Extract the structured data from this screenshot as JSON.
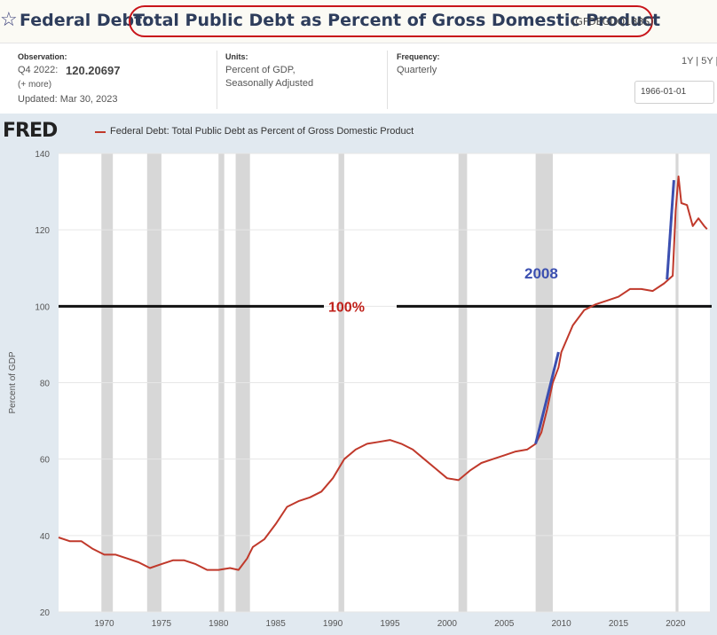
{
  "header": {
    "star_icon": "☆",
    "title_prefix": "Federal Debt:",
    "title_main": "Total Public Debt as Percent of Gross Domestic Product",
    "series_code": "(GFDEGDQ188S)"
  },
  "meta": {
    "observation_label": "Observation:",
    "observation_period": "Q4 2022:",
    "observation_value": "120.20697",
    "more_link": "(+ more)",
    "updated": "Updated: Mar 30, 2023",
    "units_label": "Units:",
    "units_line1": "Percent of GDP,",
    "units_line2": "Seasonally Adjusted",
    "frequency_label": "Frequency:",
    "frequency_value": "Quarterly",
    "range_links": "1Y | 5Y |",
    "start_date": "1966-01-01"
  },
  "legend": {
    "logo": "FRED",
    "series": "Federal Debt: Total Public Debt as Percent of Gross Domestic Product"
  },
  "annotations": {
    "hundred_label": "100%",
    "year_label": "2008"
  },
  "colors": {
    "series": "#c0392b",
    "recession": "#d7d7d7",
    "plot_bg": "#ffffff",
    "outer_bg": "#e1e9f0",
    "annotation_red": "#c0201a",
    "annotation_blue": "#3b4fb0",
    "title_oval": "#c8141a"
  },
  "chart_data": {
    "type": "line",
    "title": "Federal Debt: Total Public Debt as Percent of Gross Domestic Product",
    "ylabel": "Percent of GDP",
    "xlabel": "",
    "xlim": [
      1966.0,
      2023.0
    ],
    "ylim": [
      20,
      140
    ],
    "yticks": [
      20,
      40,
      60,
      80,
      100,
      120,
      140
    ],
    "xticks": [
      1970,
      1975,
      1980,
      1985,
      1990,
      1995,
      2000,
      2005,
      2010,
      2015,
      2020
    ],
    "recessions": [
      [
        1969.75,
        1970.75
      ],
      [
        1973.75,
        1975.0
      ],
      [
        1980.0,
        1980.5
      ],
      [
        1981.5,
        1982.75
      ],
      [
        1990.5,
        1991.0
      ],
      [
        2001.0,
        2001.75
      ],
      [
        2007.75,
        2009.25
      ],
      [
        2020.0,
        2020.25
      ]
    ],
    "reference_lines": [
      {
        "y": 100,
        "label": "100%"
      }
    ],
    "trend_lines": [
      {
        "x": [
          2007.75,
          2009.75
        ],
        "y": [
          64,
          88
        ]
      },
      {
        "x": [
          2019.25,
          2019.85
        ],
        "y": [
          107,
          133
        ]
      }
    ],
    "series": [
      {
        "name": "Federal Debt: Total Public Debt as Percent of Gross Domestic Product",
        "x": [
          1966.0,
          1967.0,
          1968.0,
          1969.0,
          1970.0,
          1971.0,
          1972.0,
          1973.0,
          1974.0,
          1975.0,
          1976.0,
          1977.0,
          1978.0,
          1979.0,
          1980.0,
          1981.0,
          1981.75,
          1982.5,
          1983.0,
          1984.0,
          1985.0,
          1986.0,
          1987.0,
          1988.0,
          1989.0,
          1990.0,
          1991.0,
          1992.0,
          1993.0,
          1994.0,
          1995.0,
          1996.0,
          1997.0,
          1998.0,
          1999.0,
          2000.0,
          2001.0,
          2002.0,
          2003.0,
          2004.0,
          2005.0,
          2006.0,
          2007.0,
          2007.75,
          2008.25,
          2008.75,
          2009.25,
          2009.75,
          2010.0,
          2011.0,
          2012.0,
          2013.0,
          2014.0,
          2015.0,
          2016.0,
          2017.0,
          2018.0,
          2019.0,
          2019.75,
          2020.0,
          2020.25,
          2020.5,
          2021.0,
          2021.5,
          2022.0,
          2022.5,
          2022.75
        ],
        "values": [
          39.5,
          38.5,
          38.5,
          36.5,
          35.0,
          35.0,
          34.0,
          33.0,
          31.5,
          32.5,
          33.5,
          33.5,
          32.5,
          31.0,
          31.0,
          31.5,
          31.0,
          34.0,
          37.0,
          39.0,
          43.0,
          47.5,
          49.0,
          50.0,
          51.5,
          55.0,
          60.0,
          62.5,
          64.0,
          64.5,
          65.0,
          64.0,
          62.5,
          60.0,
          57.5,
          55.0,
          54.5,
          57.0,
          59.0,
          60.0,
          61.0,
          62.0,
          62.5,
          64.0,
          67.0,
          73.0,
          80.0,
          84.0,
          88.0,
          95.0,
          99.0,
          100.5,
          101.5,
          102.5,
          104.5,
          104.5,
          104.0,
          106.0,
          108.0,
          125.0,
          134.0,
          127.0,
          126.5,
          121.0,
          123.0,
          121.0,
          120.2
        ]
      }
    ]
  }
}
